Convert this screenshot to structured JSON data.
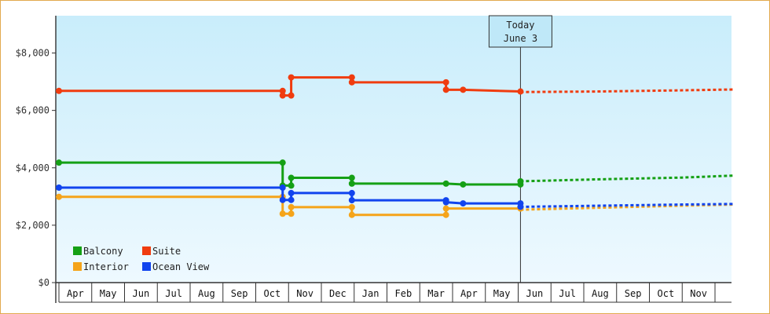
{
  "chart_data": {
    "type": "line",
    "step": true,
    "y_tick_labels": [
      "$0",
      "$2,000",
      "$4,000",
      "$6,000",
      "$8,000"
    ],
    "y_ticks": [
      0,
      2000,
      4000,
      6000,
      8000
    ],
    "ylim": [
      0,
      9300
    ],
    "x_months": [
      "Apr",
      "May",
      "Jun",
      "Jul",
      "Aug",
      "Sep",
      "Oct",
      "Nov",
      "Dec",
      "Jan",
      "Feb",
      "Mar",
      "Apr",
      "May",
      "Jun",
      "Jul",
      "Aug",
      "Sep",
      "Oct",
      "Nov"
    ],
    "x_start": 0,
    "x_end": 20.6,
    "today": {
      "x": 14.07,
      "line1": "Today",
      "line2": "June 3"
    },
    "legend_placement": "bottom-left",
    "series": [
      {
        "name": "Balcony",
        "color": "#15a015",
        "points": [
          [
            0,
            4180
          ],
          [
            6.82,
            4180
          ],
          [
            6.82,
            3380
          ],
          [
            7.08,
            3380
          ],
          [
            7.08,
            3650
          ],
          [
            8.93,
            3650
          ],
          [
            8.93,
            3450
          ],
          [
            11.8,
            3450
          ],
          [
            12.32,
            3420
          ],
          [
            14.07,
            3420
          ],
          [
            14.07,
            3530
          ]
        ],
        "forecast": [
          [
            14.07,
            3530
          ],
          [
            16.5,
            3600
          ],
          [
            19,
            3660
          ],
          [
            20.6,
            3730
          ]
        ]
      },
      {
        "name": "Suite",
        "color": "#f03c0f",
        "points": [
          [
            0,
            6680
          ],
          [
            6.82,
            6680
          ],
          [
            6.82,
            6520
          ],
          [
            7.08,
            6520
          ],
          [
            7.08,
            7150
          ],
          [
            8.93,
            7150
          ],
          [
            8.93,
            6980
          ],
          [
            11.8,
            6980
          ],
          [
            11.8,
            6720
          ],
          [
            12.32,
            6720
          ],
          [
            14.07,
            6660
          ]
        ],
        "forecast": [
          [
            14.07,
            6640
          ],
          [
            16.5,
            6660
          ],
          [
            19,
            6700
          ],
          [
            20.6,
            6730
          ]
        ]
      },
      {
        "name": "Interior",
        "color": "#f5a41a",
        "points": [
          [
            0,
            2990
          ],
          [
            6.82,
            2990
          ],
          [
            6.82,
            2400
          ],
          [
            7.08,
            2400
          ],
          [
            7.08,
            2630
          ],
          [
            8.93,
            2630
          ],
          [
            8.93,
            2360
          ],
          [
            11.8,
            2360
          ],
          [
            11.8,
            2580
          ],
          [
            14.07,
            2580
          ]
        ],
        "forecast": [
          [
            14.07,
            2540
          ],
          [
            16.5,
            2610
          ],
          [
            19,
            2680
          ],
          [
            20.6,
            2720
          ]
        ]
      },
      {
        "name": "Ocean View",
        "color": "#1144ee",
        "points": [
          [
            0,
            3310
          ],
          [
            6.82,
            3310
          ],
          [
            6.82,
            2880
          ],
          [
            7.08,
            2880
          ],
          [
            7.08,
            3120
          ],
          [
            8.93,
            3120
          ],
          [
            8.93,
            2870
          ],
          [
            11.8,
            2870
          ],
          [
            11.8,
            2800
          ],
          [
            12.32,
            2760
          ],
          [
            14.07,
            2760
          ],
          [
            14.07,
            2640
          ]
        ],
        "forecast": [
          [
            14.07,
            2640
          ],
          [
            16.5,
            2680
          ],
          [
            19,
            2720
          ],
          [
            20.6,
            2740
          ]
        ]
      }
    ]
  }
}
